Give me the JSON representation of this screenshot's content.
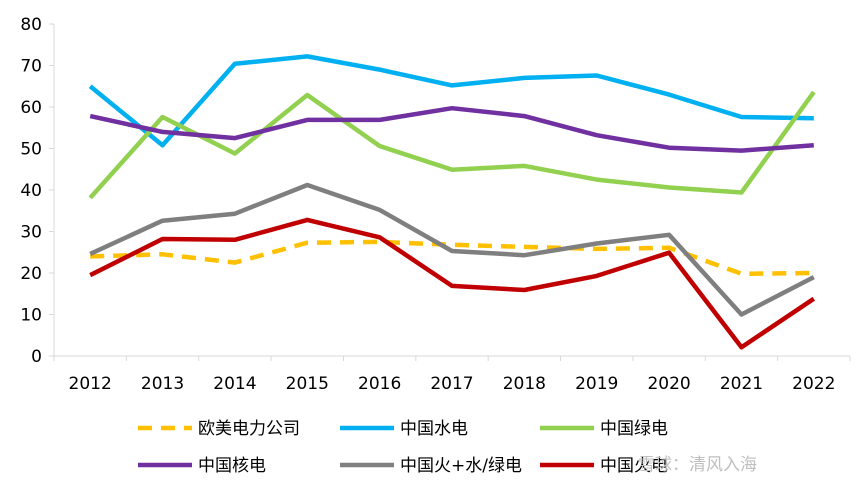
{
  "chart_data": {
    "type": "line",
    "x": [
      "2012",
      "2013",
      "2014",
      "2015",
      "2016",
      "2017",
      "2018",
      "2019",
      "2020",
      "2021",
      "2022"
    ],
    "ylim": [
      0,
      80
    ],
    "yticks": [
      "0",
      "10",
      "20",
      "30",
      "40",
      "50",
      "60",
      "70",
      "80"
    ],
    "grid": false,
    "legend_position": "bottom",
    "series": [
      {
        "name": "欧美电力公司",
        "color": "#FFC000",
        "dash": true,
        "values": [
          24,
          24.5,
          22.5,
          27.3,
          27.5,
          26.8,
          26.3,
          25.8,
          26.1,
          19.8,
          20
        ]
      },
      {
        "name": "中国水电",
        "color": "#00B0F0",
        "dash": false,
        "values": [
          65,
          50.8,
          70.4,
          72.2,
          69,
          65.2,
          67,
          67.6,
          63,
          57.6,
          57.3
        ]
      },
      {
        "name": "中国绿电",
        "color": "#92D050",
        "dash": false,
        "values": [
          38.1,
          57.6,
          48.8,
          62.9,
          50.6,
          44.9,
          45.8,
          42.5,
          40.6,
          39.4,
          63.6
        ]
      },
      {
        "name": "中国核电",
        "color": "#7030A0",
        "dash": false,
        "values": [
          57.8,
          54,
          52.5,
          56.9,
          56.9,
          59.7,
          57.8,
          53.2,
          50.2,
          49.5,
          50.8
        ]
      },
      {
        "name": "中国火+水/绿电",
        "color": "#7F7F7F",
        "dash": false,
        "values": [
          24.6,
          32.6,
          34.3,
          41.2,
          35.2,
          25.3,
          24.3,
          27.1,
          29.2,
          10,
          19
        ]
      },
      {
        "name": "中国火电",
        "color": "#C00000",
        "dash": false,
        "values": [
          19.5,
          28.2,
          28,
          32.8,
          28.6,
          16.9,
          15.9,
          19.3,
          24.9,
          2.1,
          13.8
        ]
      }
    ]
  },
  "watermark": "雪球：清风入海"
}
